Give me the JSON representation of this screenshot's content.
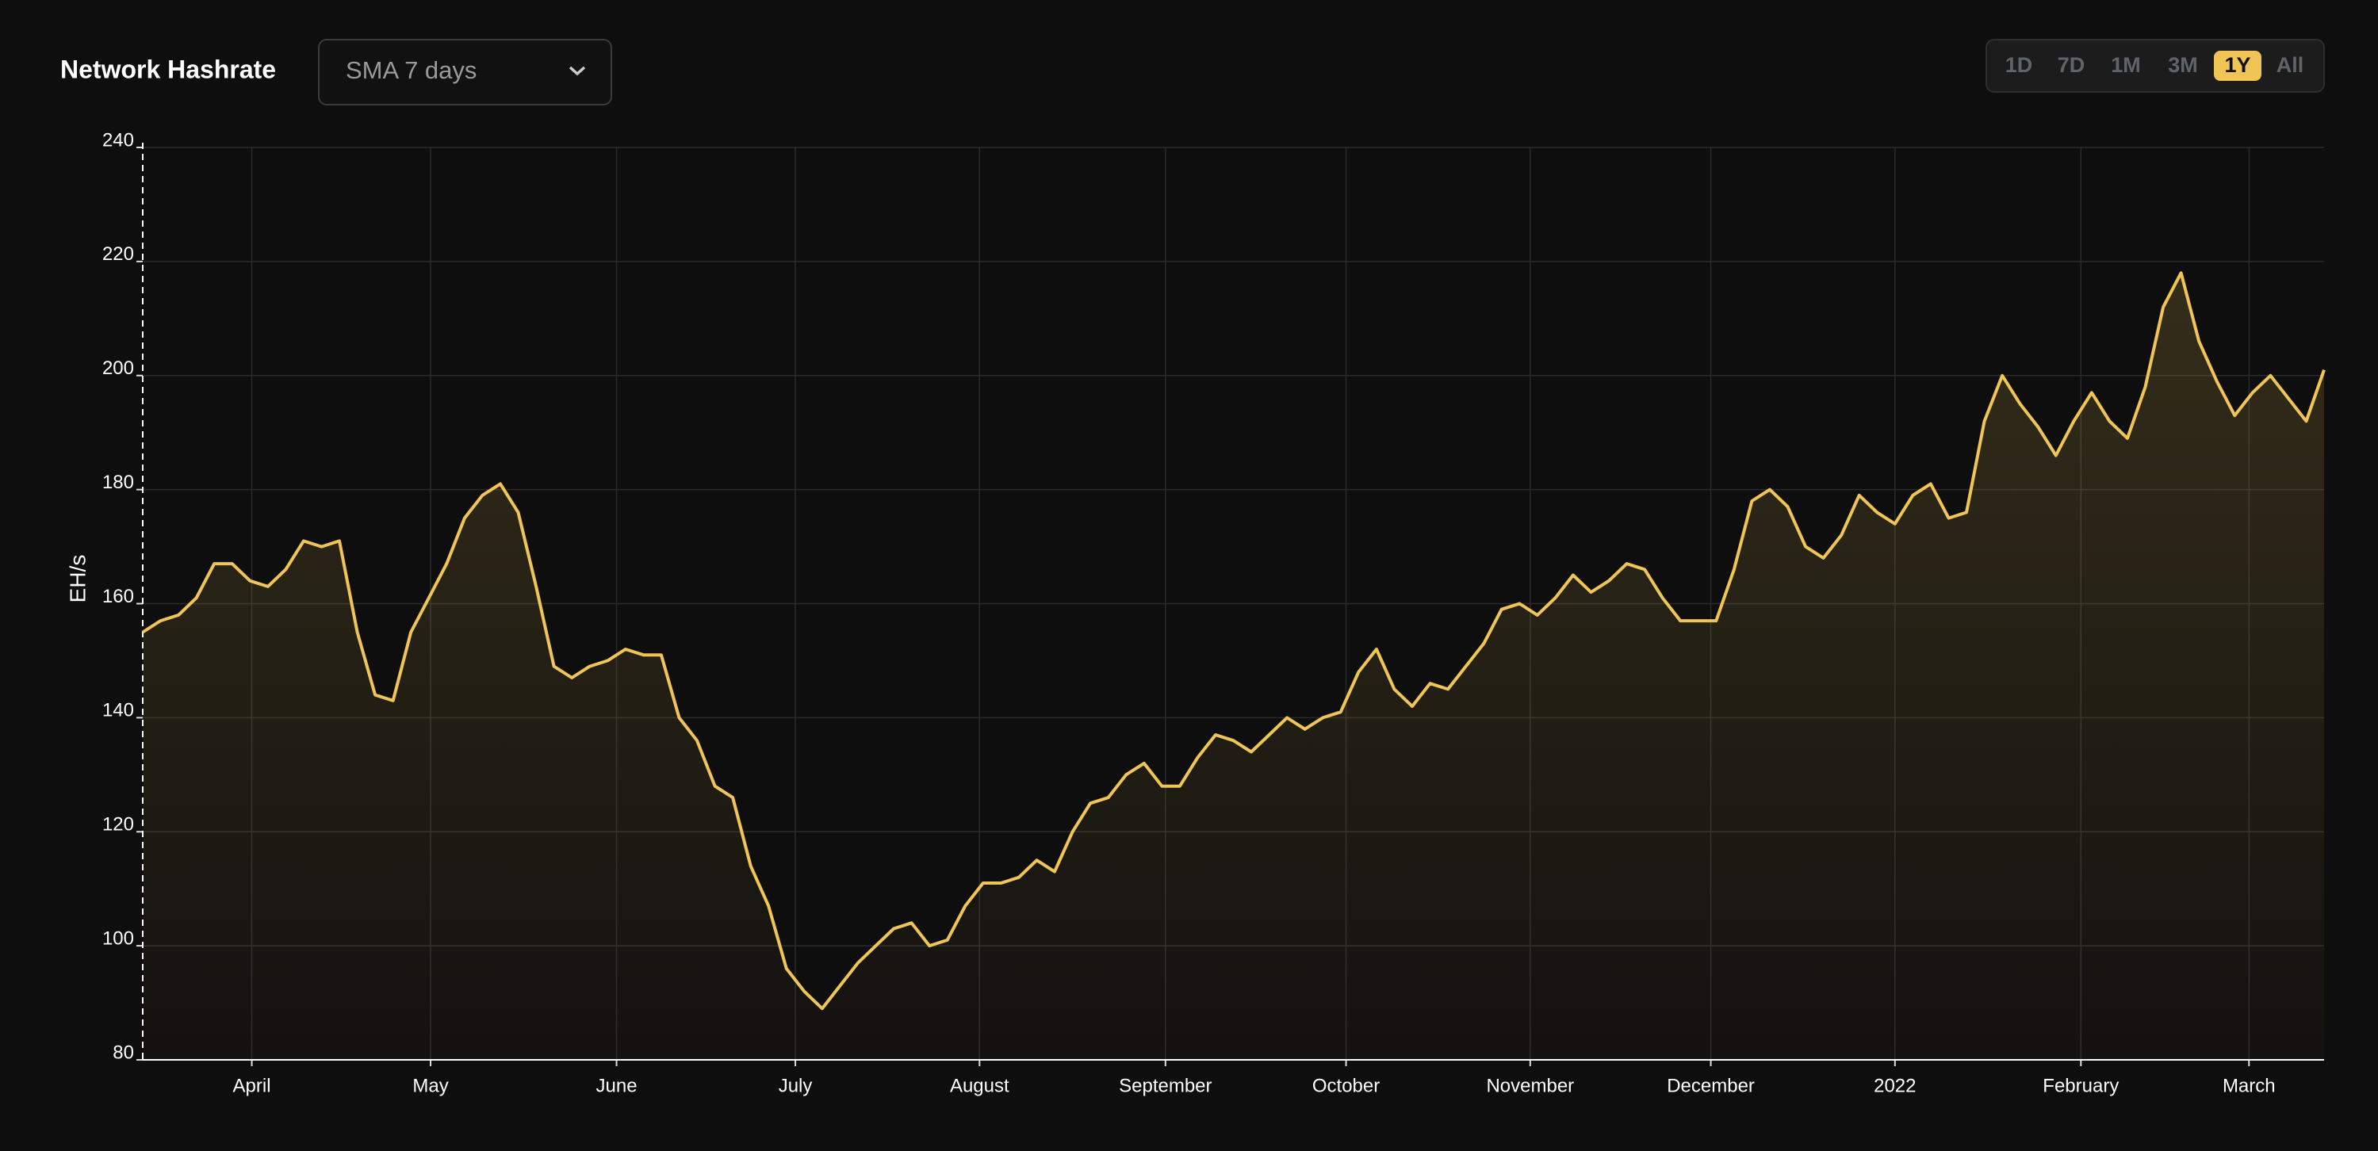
{
  "controls": {
    "dropdown": "SMA 7 days",
    "ranges": [
      "1D",
      "7D",
      "1M",
      "3M",
      "1Y",
      "All"
    ],
    "selected_range": "1Y"
  },
  "chart_data": {
    "type": "line",
    "title": "Network Hashrate",
    "y_label": "EH/s",
    "color": "#f0c555",
    "fill": true,
    "grid": true,
    "values": [
      155,
      157,
      158,
      161,
      167,
      167,
      164,
      163,
      166,
      171,
      170,
      171,
      155,
      144,
      143,
      155,
      161,
      167,
      175,
      179,
      181,
      176,
      163,
      149,
      147,
      149,
      150,
      152,
      151,
      151,
      140,
      136,
      128,
      126,
      114,
      107,
      96,
      92,
      89,
      93,
      97,
      100,
      103,
      104,
      100,
      101,
      107,
      111,
      111,
      112,
      115,
      113,
      120,
      125,
      126,
      130,
      132,
      128,
      128,
      133,
      137,
      136,
      134,
      137,
      140,
      138,
      140,
      141,
      148,
      152,
      145,
      142,
      146,
      145,
      149,
      153,
      159,
      160,
      158,
      161,
      165,
      162,
      164,
      167,
      166,
      161,
      157,
      157,
      157,
      166,
      178,
      180,
      177,
      170,
      168,
      172,
      179,
      176,
      174,
      179,
      181,
      175,
      176,
      192,
      200,
      195,
      191,
      186,
      192,
      197,
      192,
      189,
      198,
      212,
      218,
      206,
      199,
      193,
      197,
      200,
      196,
      192,
      201
    ],
    "xlim": [
      0,
      122
    ],
    "xticks": [
      {
        "value": 6.1,
        "label": "April"
      },
      {
        "value": 16.1,
        "label": "May"
      },
      {
        "value": 26.5,
        "label": "June"
      },
      {
        "value": 36.5,
        "label": "July"
      },
      {
        "value": 46.8,
        "label": "August"
      },
      {
        "value": 57.2,
        "label": "September"
      },
      {
        "value": 67.3,
        "label": "October"
      },
      {
        "value": 77.6,
        "label": "November"
      },
      {
        "value": 87.7,
        "label": "December"
      },
      {
        "value": 98.0,
        "label": "2022"
      },
      {
        "value": 108.4,
        "label": "February"
      },
      {
        "value": 117.8,
        "label": "March"
      }
    ],
    "ylim": [
      80,
      240
    ],
    "yticks": [
      80,
      100,
      120,
      140,
      160,
      180,
      200,
      220,
      240
    ]
  }
}
